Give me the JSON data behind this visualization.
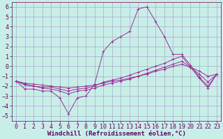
{
  "xlabel": "Windchill (Refroidissement éolien,°C)",
  "background_color": "#c8eee8",
  "grid_color": "#aaaacc",
  "line_color": "#993399",
  "xlim": [
    -0.5,
    23.5
  ],
  "ylim": [
    -5.5,
    6.5
  ],
  "yticks": [
    -5,
    -4,
    -3,
    -2,
    -1,
    0,
    1,
    2,
    3,
    4,
    5,
    6
  ],
  "xticks": [
    0,
    1,
    2,
    3,
    4,
    5,
    6,
    7,
    8,
    9,
    10,
    11,
    12,
    13,
    14,
    15,
    16,
    17,
    18,
    19,
    20,
    21,
    22,
    23
  ],
  "x": [
    0,
    1,
    2,
    3,
    4,
    5,
    6,
    7,
    8,
    9,
    10,
    11,
    12,
    13,
    14,
    15,
    16,
    17,
    18,
    19,
    20,
    21,
    22,
    23
  ],
  "lines": [
    [
      -1.5,
      -2.3,
      -2.3,
      -2.5,
      -2.5,
      -3.2,
      -4.8,
      -3.2,
      -3.0,
      -1.8,
      1.5,
      2.5,
      3.0,
      3.5,
      5.8,
      6.0,
      4.5,
      3.0,
      1.2,
      1.2,
      0.1,
      -1.1,
      -2.0,
      -0.8
    ],
    [
      -1.5,
      -1.8,
      -2.0,
      -2.1,
      -2.1,
      -2.3,
      -2.5,
      -2.3,
      -2.2,
      -2.0,
      -1.6,
      -1.4,
      -1.2,
      -0.9,
      -0.6,
      -0.3,
      0.0,
      0.3,
      0.7,
      1.0,
      -0.1,
      -1.2,
      -2.2,
      -0.8
    ],
    [
      -1.5,
      -1.9,
      -2.0,
      -2.2,
      -2.3,
      -2.5,
      -2.8,
      -2.5,
      -2.4,
      -2.2,
      -1.9,
      -1.7,
      -1.5,
      -1.3,
      -1.0,
      -0.7,
      -0.4,
      -0.1,
      0.2,
      0.5,
      -0.1,
      -0.8,
      -1.6,
      -0.8
    ],
    [
      -1.5,
      -1.7,
      -1.8,
      -1.9,
      -2.0,
      -2.1,
      -2.2,
      -2.1,
      -2.0,
      -1.9,
      -1.7,
      -1.5,
      -1.4,
      -1.2,
      -1.0,
      -0.8,
      -0.5,
      -0.3,
      0.0,
      0.2,
      -0.1,
      -0.5,
      -1.0,
      -0.8
    ]
  ],
  "marker": "+",
  "tick_fontsize": 6,
  "xlabel_fontsize": 6.5
}
